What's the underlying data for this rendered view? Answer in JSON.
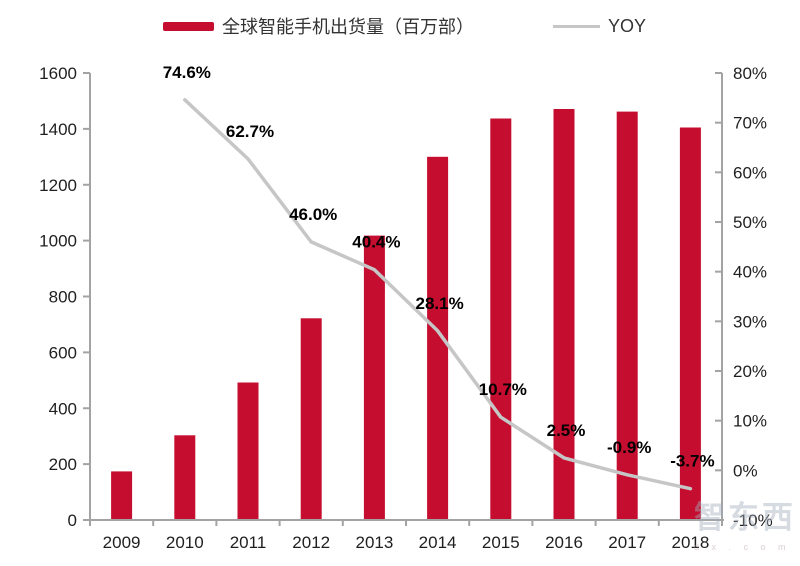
{
  "legend": {
    "bar_label": "全球智能手机出货量（百万部）",
    "line_label": "YOY"
  },
  "colors": {
    "bar": "#C40D2F",
    "line": "#C6C6C6",
    "axis": "#A3A3A3",
    "tick_text": "#1F1F1F",
    "data_label": "#000000"
  },
  "watermark": {
    "text": "智东西",
    "subtext": "d x . c o m"
  },
  "chart_data": {
    "type": "bar",
    "title": "",
    "categories": [
      "2009",
      "2010",
      "2011",
      "2012",
      "2013",
      "2014",
      "2015",
      "2016",
      "2017",
      "2018"
    ],
    "series": [
      {
        "name": "全球智能手机出货量（百万部）",
        "kind": "bar",
        "axis": "left",
        "values": [
          174,
          303,
          492,
          722,
          1018,
          1300,
          1437,
          1471,
          1462,
          1405
        ]
      },
      {
        "name": "YOY",
        "kind": "line",
        "axis": "right",
        "values": [
          null,
          74.6,
          62.7,
          46.0,
          40.4,
          28.1,
          10.7,
          2.5,
          -0.9,
          -3.7
        ],
        "point_labels": [
          null,
          "74.6%",
          "62.7%",
          "46.0%",
          "40.4%",
          "28.1%",
          "10.7%",
          "2.5%",
          "-0.9%",
          "-3.7%"
        ]
      }
    ],
    "left_axis": {
      "min": 0,
      "max": 1600,
      "tick_step": 200,
      "tick_labels": [
        "0",
        "200",
        "400",
        "600",
        "800",
        "1000",
        "1200",
        "1400",
        "1600"
      ]
    },
    "right_axis": {
      "min": -10,
      "max": 80,
      "tick_step": 10,
      "tick_labels": [
        "-10%",
        "0%",
        "10%",
        "20%",
        "30%",
        "40%",
        "50%",
        "60%",
        "70%",
        "80%"
      ]
    },
    "legend_position": "top",
    "grid": false
  }
}
